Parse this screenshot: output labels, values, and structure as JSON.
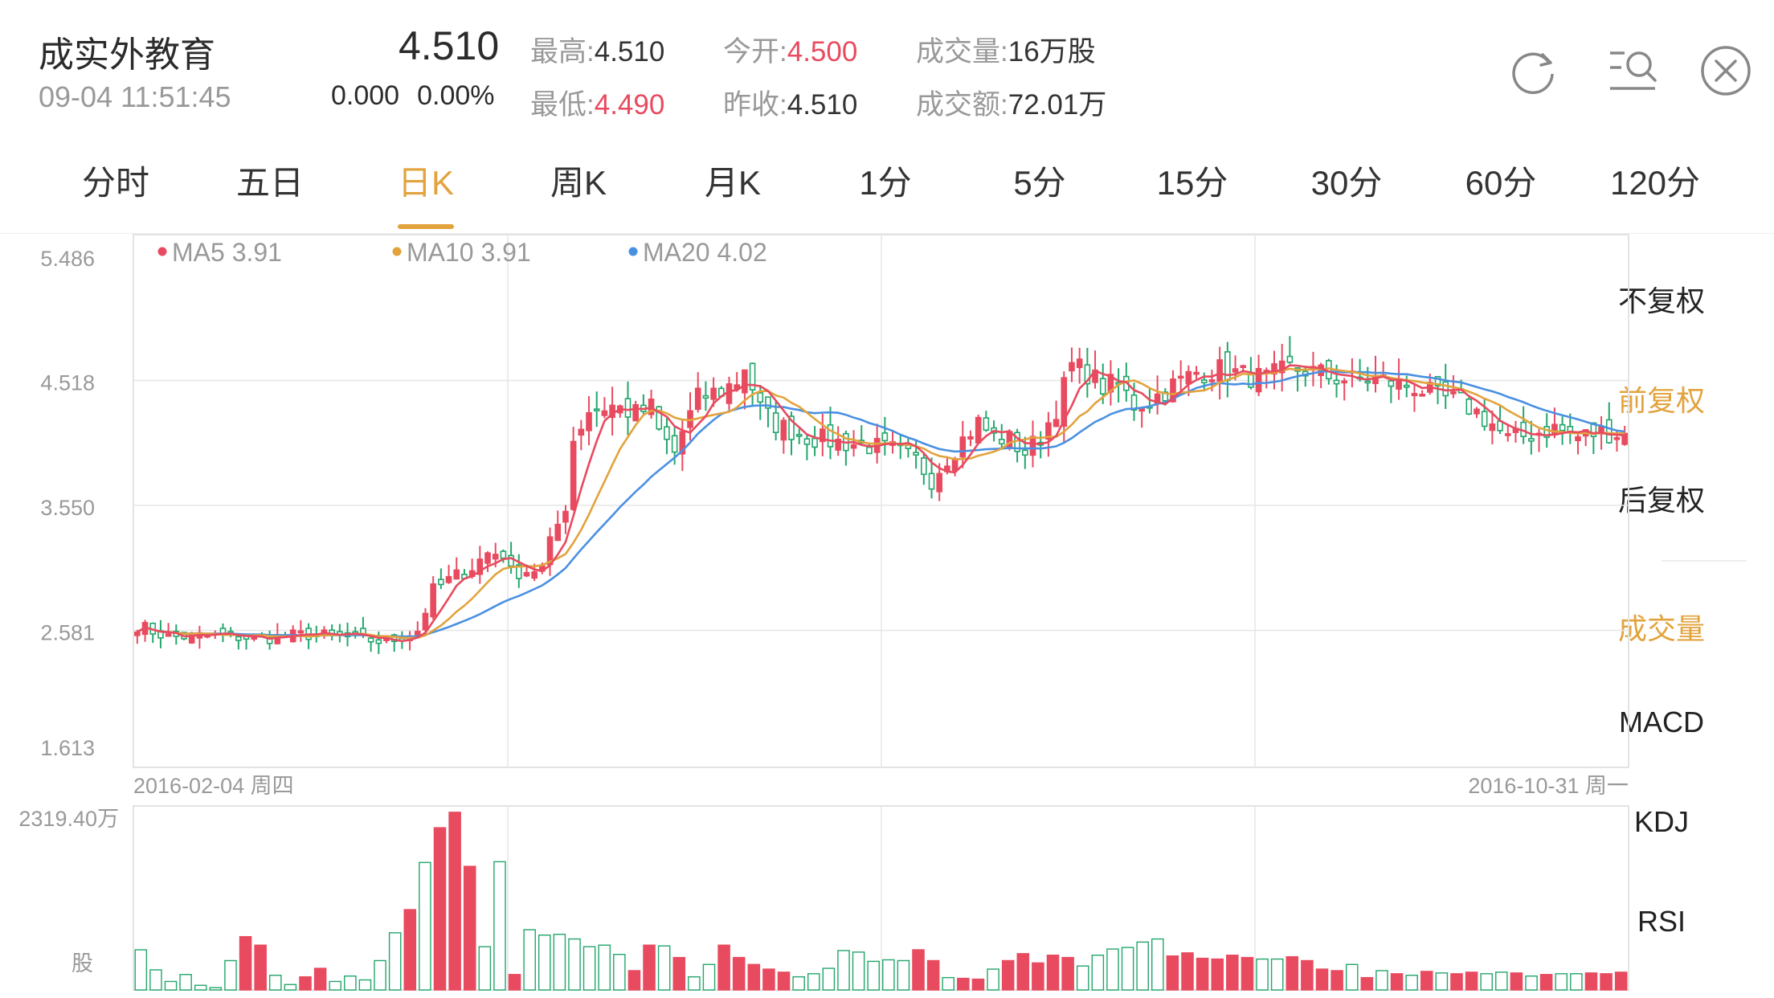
{
  "header": {
    "name": "成实外教育",
    "time": "09-04 11:51:45",
    "price": "4.510",
    "change": "0.000",
    "change_pct": "0.00%",
    "high_label": "最高:",
    "high": "4.510",
    "low_label": "最低:",
    "low": "4.490",
    "open_label": "今开:",
    "open": "4.500",
    "prev_close_label": "昨收:",
    "prev_close": "4.510",
    "volume_label": "成交量:",
    "volume": "16万股",
    "turnover_label": "成交额:",
    "turnover": "72.01万",
    "icons": [
      "refresh-icon",
      "search-list-icon",
      "close-icon"
    ]
  },
  "tabs": [
    "分时",
    "五日",
    "日K",
    "周K",
    "月K",
    "1分",
    "5分",
    "15分",
    "30分",
    "60分",
    "120分"
  ],
  "active_tab": "日K",
  "right_menu": {
    "items": [
      "不复权",
      "前复权",
      "后复权",
      "成交量",
      "MACD",
      "KDJ",
      "RSI"
    ],
    "selected": [
      "前复权",
      "成交量"
    ]
  },
  "colors": {
    "up": "#e84a5f",
    "down": "#23a66b",
    "ma5": "#e84a5f",
    "ma10": "#e2a33d",
    "ma20": "#4a90e2",
    "accent": "#e2a33d",
    "grid": "#e6e6e6",
    "text_gray": "#999999"
  },
  "chart_data": [
    {
      "type": "candlestick",
      "title": "",
      "ylim": [
        1.613,
        5.486
      ],
      "y_ticks": [
        "5.486",
        "4.518",
        "3.550",
        "2.581",
        "1.613"
      ],
      "x_labels": {
        "start": "2016-02-04 周四",
        "end": "2016-10-31 周一"
      },
      "legend": [
        {
          "name": "MA5",
          "value": "3.91",
          "color": "#e84a5f"
        },
        {
          "name": "MA10",
          "value": "3.91",
          "color": "#e2a33d"
        },
        {
          "name": "MA20",
          "value": "4.02",
          "color": "#4a90e2"
        }
      ],
      "close_anchors": [
        [
          0,
          2.62
        ],
        [
          4,
          2.53
        ],
        [
          10,
          2.54
        ],
        [
          16,
          2.52
        ],
        [
          22,
          2.55
        ],
        [
          28,
          2.52
        ],
        [
          32,
          2.49
        ],
        [
          36,
          2.58
        ],
        [
          38,
          2.89
        ],
        [
          40,
          2.97
        ],
        [
          43,
          3.07
        ],
        [
          45,
          3.18
        ],
        [
          47,
          3.18
        ],
        [
          48,
          3.03
        ],
        [
          52,
          3.06
        ],
        [
          53,
          3.25
        ],
        [
          55,
          3.55
        ],
        [
          56,
          4.06
        ],
        [
          58,
          4.29
        ],
        [
          61,
          4.32
        ],
        [
          64,
          4.26
        ],
        [
          66,
          4.31
        ],
        [
          67,
          4.12
        ],
        [
          69,
          3.96
        ],
        [
          70,
          4.12
        ],
        [
          72,
          4.38
        ],
        [
          75,
          4.44
        ],
        [
          77,
          4.51
        ],
        [
          78,
          4.63
        ],
        [
          80,
          4.3
        ],
        [
          82,
          4.18
        ],
        [
          86,
          4.08
        ],
        [
          90,
          4.04
        ],
        [
          94,
          4.01
        ],
        [
          97,
          3.98
        ],
        [
          100,
          3.9
        ],
        [
          102,
          3.75
        ],
        [
          104,
          3.92
        ],
        [
          106,
          4.06
        ],
        [
          108,
          4.19
        ],
        [
          110,
          4.08
        ],
        [
          112,
          4.06
        ],
        [
          114,
          3.96
        ],
        [
          116,
          4.08
        ],
        [
          118,
          4.3
        ],
        [
          120,
          4.63
        ],
        [
          122,
          4.58
        ],
        [
          124,
          4.47
        ],
        [
          126,
          4.49
        ],
        [
          128,
          4.33
        ],
        [
          130,
          4.36
        ],
        [
          133,
          4.48
        ],
        [
          136,
          4.58
        ],
        [
          139,
          4.6
        ],
        [
          142,
          4.56
        ],
        [
          145,
          4.53
        ],
        [
          148,
          4.61
        ],
        [
          150,
          4.6
        ],
        [
          153,
          4.55
        ],
        [
          156,
          4.52
        ],
        [
          159,
          4.53
        ],
        [
          162,
          4.49
        ],
        [
          164,
          4.47
        ],
        [
          167,
          4.39
        ],
        [
          170,
          4.35
        ],
        [
          172,
          4.27
        ],
        [
          174,
          4.18
        ],
        [
          176,
          4.06
        ],
        [
          179,
          4.1
        ],
        [
          182,
          4.15
        ],
        [
          185,
          4.08
        ],
        [
          188,
          4.12
        ],
        [
          191,
          4.1
        ]
      ],
      "candle_count": 192
    },
    {
      "type": "bar",
      "title": "成交量",
      "ylim": [
        0,
        2319.4
      ],
      "y_tick_top": "2319.40万",
      "y_unit": "股",
      "approx_values_wan": [
        520,
        260,
        110,
        200,
        60,
        30,
        380,
        690,
        580,
        190,
        70,
        170,
        280,
        110,
        180,
        130,
        380,
        740,
        1040,
        1650,
        2100,
        2300,
        1600,
        560,
        1660,
        200,
        780,
        710,
        720,
        660,
        560,
        580,
        460,
        250,
        580,
        570,
        420,
        170,
        330,
        580,
        420,
        330,
        270,
        230,
        170,
        210,
        280,
        510,
        490,
        370,
        390,
        380,
        520,
        380,
        160,
        150,
        140,
        270,
        380,
        470,
        350,
        450,
        420,
        310,
        450,
        530,
        550,
        620,
        660,
        440,
        480,
        410,
        400,
        450,
        420,
        400,
        400,
        430,
        380,
        270,
        250,
        330,
        160,
        250,
        210,
        190,
        240,
        220,
        210,
        230,
        210,
        230,
        220,
        180,
        200,
        210,
        210,
        220,
        210,
        230
      ]
    }
  ]
}
